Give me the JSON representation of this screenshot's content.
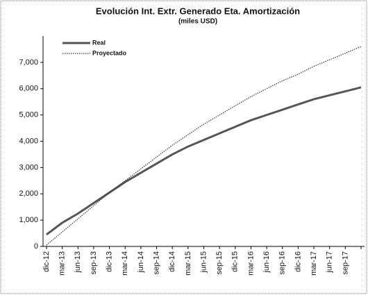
{
  "chart_data": {
    "type": "line",
    "title": "Evolución Int. Extr. Generado Eta. Amortización",
    "subtitle": "(miles USD)",
    "categories": [
      "dic-12",
      "mar-13",
      "jun-13",
      "sep-13",
      "dic-13",
      "mar-14",
      "jun-14",
      "sep-14",
      "dic-14",
      "mar-15",
      "jun-15",
      "sep-15",
      "dic-15",
      "mar-16",
      "jun-16",
      "sep-16",
      "dic-16",
      "mar-17",
      "jun-17",
      "sep-17",
      null
    ],
    "series": [
      {
        "name": "Real",
        "color": "#555555",
        "dash": "solid",
        "values": [
          450,
          900,
          1250,
          1650,
          2050,
          2450,
          2800,
          3150,
          3500,
          3800,
          4050,
          4300,
          4550,
          4800,
          5000,
          5200,
          5400,
          5600,
          5750,
          5900,
          6050
        ]
      },
      {
        "name": "Proyectado",
        "color": "#333333",
        "dash": "dotted",
        "values": [
          50,
          550,
          1050,
          1550,
          2050,
          2500,
          2950,
          3400,
          3850,
          4250,
          4650,
          5000,
          5350,
          5700,
          6000,
          6300,
          6550,
          6850,
          7100,
          7350,
          7600
        ]
      }
    ],
    "ylim": [
      0,
      8000
    ],
    "yticks": [
      0,
      {
        "value": 1000,
        "label": "1,000"
      },
      {
        "value": 2000,
        "label": "2,000"
      },
      {
        "value": 3000,
        "label": "3,000"
      },
      {
        "value": 4000,
        "label": "4,000"
      },
      {
        "value": 5000,
        "label": "5,000"
      },
      {
        "value": 6000,
        "label": "6,000"
      },
      {
        "value": 7000,
        "label": "7,000"
      }
    ],
    "grid": false,
    "legend": "upper left"
  }
}
